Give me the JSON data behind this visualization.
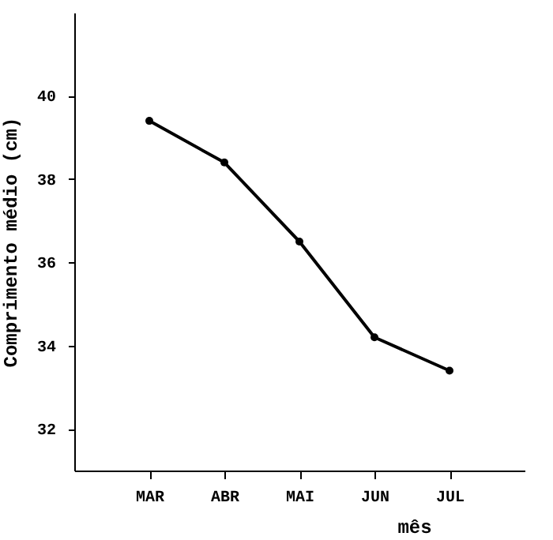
{
  "chart_data": {
    "type": "line",
    "xlabel": "mês",
    "ylabel": "Comprimento médio (cm)",
    "categories": [
      "MAR",
      "ABR",
      "MAI",
      "JUN",
      "JUL"
    ],
    "series": [
      {
        "color": "#000000",
        "values": [
          39.4,
          38.4,
          36.5,
          34.2,
          33.4
        ]
      }
    ],
    "ylim": [
      31,
      42
    ],
    "yticks": [
      32,
      34,
      36,
      38,
      40
    ],
    "grid": false,
    "marker": "circle",
    "line_style": "solid"
  }
}
